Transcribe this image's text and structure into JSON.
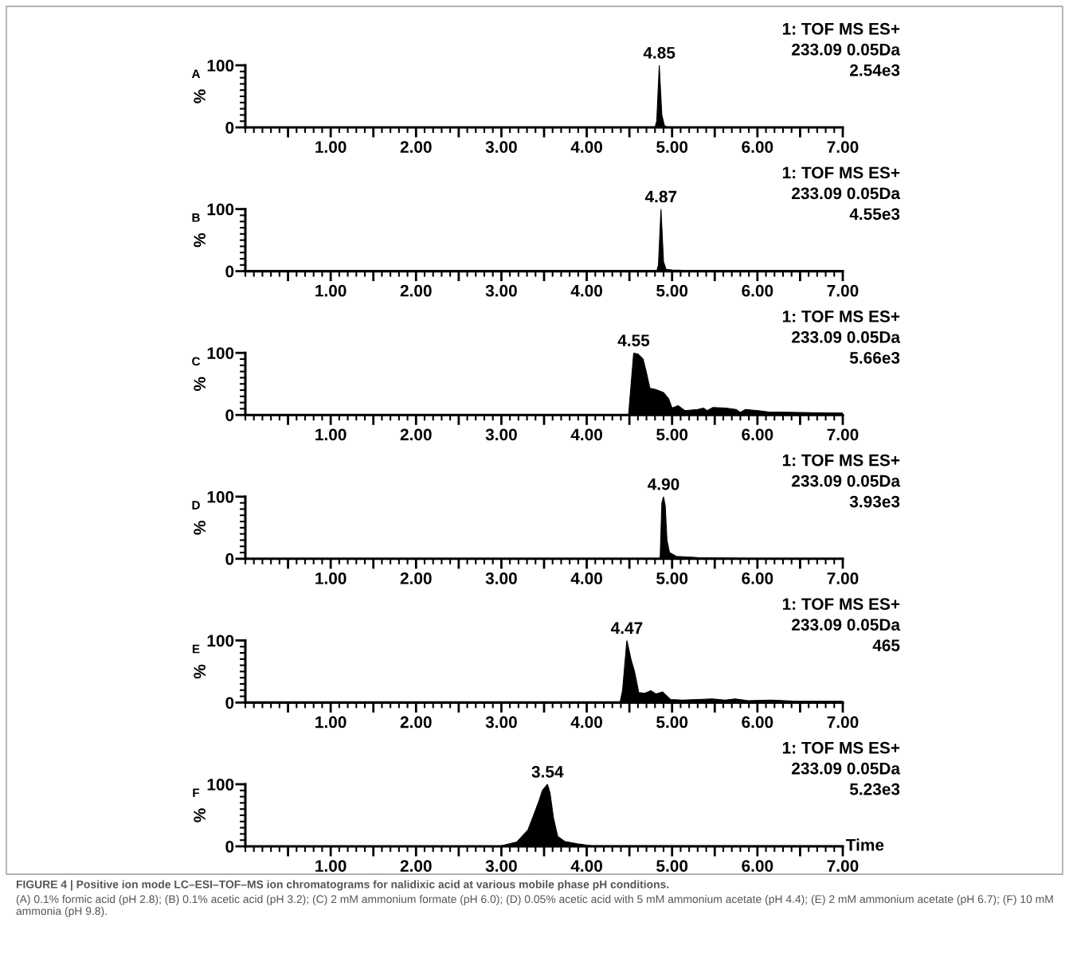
{
  "chart_data": [
    {
      "type": "area",
      "color": "#000000",
      "ylabel": "%",
      "xlim": [
        0,
        7
      ],
      "ylim": [
        0,
        100
      ],
      "yticks": [
        0,
        100
      ],
      "xticks": [
        {
          "value": 0.5,
          "label": null
        },
        {
          "value": 1,
          "label": "1.00"
        },
        {
          "value": 1.5,
          "label": null
        },
        {
          "value": 2,
          "label": "2.00"
        },
        {
          "value": 2.5,
          "label": null
        },
        {
          "value": 3,
          "label": "3.00"
        },
        {
          "value": 3.5,
          "label": null
        },
        {
          "value": 4,
          "label": "4.00"
        },
        {
          "value": 4.5,
          "label": null
        },
        {
          "value": 5,
          "label": "5.00"
        },
        {
          "value": 5.5,
          "label": null
        },
        {
          "value": 6,
          "label": "6.00"
        },
        {
          "value": 6.5,
          "label": null
        },
        {
          "value": 7,
          "label": "7.00"
        }
      ],
      "x": [
        0,
        4.8,
        4.82,
        4.85,
        4.88,
        4.91,
        4.95,
        7
      ],
      "values": [
        0,
        0,
        10,
        100,
        20,
        3,
        0,
        0
      ],
      "annotations": [
        "A",
        "1: TOF MS ES+",
        "233.09 0.05Da",
        "2.54e3",
        {
          "text": "4.85",
          "x": 4.85,
          "y": 100
        }
      ]
    },
    {
      "type": "area",
      "color": "#000000",
      "ylabel": "%",
      "xlim": [
        0,
        7
      ],
      "ylim": [
        0,
        100
      ],
      "yticks": [
        0,
        100
      ],
      "xticks": [
        {
          "value": 0.5,
          "label": null
        },
        {
          "value": 1,
          "label": "1.00"
        },
        {
          "value": 1.5,
          "label": null
        },
        {
          "value": 2,
          "label": "2.00"
        },
        {
          "value": 2.5,
          "label": null
        },
        {
          "value": 3,
          "label": "3.00"
        },
        {
          "value": 3.5,
          "label": null
        },
        {
          "value": 4,
          "label": "4.00"
        },
        {
          "value": 4.5,
          "label": null
        },
        {
          "value": 5,
          "label": "5.00"
        },
        {
          "value": 5.5,
          "label": null
        },
        {
          "value": 6,
          "label": "6.00"
        },
        {
          "value": 6.5,
          "label": null
        },
        {
          "value": 7,
          "label": "7.00"
        }
      ],
      "x": [
        0,
        4.82,
        4.84,
        4.87,
        4.9,
        4.93,
        5.0,
        5.2,
        5.3,
        7
      ],
      "values": [
        0,
        0,
        10,
        100,
        15,
        3,
        2,
        1,
        0,
        0
      ],
      "annotations": [
        "B",
        "1: TOF MS ES+",
        "233.09 0.05Da",
        "4.55e3",
        {
          "text": "4.87",
          "x": 4.87,
          "y": 100
        }
      ]
    },
    {
      "type": "area",
      "color": "#000000",
      "ylabel": "%",
      "xlim": [
        0,
        7
      ],
      "ylim": [
        0,
        100
      ],
      "yticks": [
        0,
        100
      ],
      "xticks": [
        {
          "value": 0.5,
          "label": null
        },
        {
          "value": 1,
          "label": "1.00"
        },
        {
          "value": 1.5,
          "label": null
        },
        {
          "value": 2,
          "label": "2.00"
        },
        {
          "value": 2.5,
          "label": null
        },
        {
          "value": 3,
          "label": "3.00"
        },
        {
          "value": 3.5,
          "label": null
        },
        {
          "value": 4,
          "label": "4.00"
        },
        {
          "value": 4.5,
          "label": null
        },
        {
          "value": 5,
          "label": "5.00"
        },
        {
          "value": 5.5,
          "label": null
        },
        {
          "value": 6,
          "label": "6.00"
        },
        {
          "value": 6.5,
          "label": null
        },
        {
          "value": 7,
          "label": "7.00"
        }
      ],
      "x": [
        0,
        4.49,
        4.55,
        4.6,
        4.66,
        4.7,
        4.74,
        4.81,
        4.9,
        4.96,
        5.0,
        5.07,
        5.15,
        5.3,
        5.37,
        5.41,
        5.48,
        5.63,
        5.75,
        5.8,
        5.86,
        6.01,
        6.12,
        6.49,
        7.0
      ],
      "values": [
        0,
        0,
        100,
        98,
        90,
        68,
        43,
        41,
        36,
        26,
        11,
        15,
        7,
        9,
        11,
        7,
        12,
        11,
        9,
        4,
        9,
        7,
        5,
        4,
        3
      ],
      "annotations": [
        "C",
        "1: TOF MS ES+",
        "233.09 0.05Da",
        "5.66e3",
        {
          "text": "4.55",
          "x": 4.55,
          "y": 100
        }
      ]
    },
    {
      "type": "area",
      "color": "#000000",
      "ylabel": "%",
      "xlim": [
        0,
        7
      ],
      "ylim": [
        0,
        100
      ],
      "yticks": [
        0,
        100
      ],
      "xticks": [
        {
          "value": 0.5,
          "label": null
        },
        {
          "value": 1,
          "label": "1.00"
        },
        {
          "value": 1.5,
          "label": null
        },
        {
          "value": 2,
          "label": "2.00"
        },
        {
          "value": 2.5,
          "label": null
        },
        {
          "value": 3,
          "label": "3.00"
        },
        {
          "value": 3.5,
          "label": null
        },
        {
          "value": 4,
          "label": "4.00"
        },
        {
          "value": 4.5,
          "label": null
        },
        {
          "value": 5,
          "label": "5.00"
        },
        {
          "value": 5.5,
          "label": null
        },
        {
          "value": 6,
          "label": "6.00"
        },
        {
          "value": 6.5,
          "label": null
        },
        {
          "value": 7,
          "label": "7.00"
        }
      ],
      "x": [
        0,
        4.86,
        4.88,
        4.9,
        4.92,
        4.94,
        4.97,
        5.05,
        5.3,
        5.7,
        6.0,
        7
      ],
      "values": [
        0,
        0,
        90,
        100,
        85,
        30,
        10,
        4,
        2,
        1,
        0,
        0
      ],
      "annotations": [
        "D",
        "1: TOF MS ES+",
        "233.09 0.05Da",
        "3.93e3",
        {
          "text": "4.90",
          "x": 4.9,
          "y": 100
        }
      ]
    },
    {
      "type": "area",
      "color": "#000000",
      "ylabel": "%",
      "xlim": [
        0,
        7
      ],
      "ylim": [
        0,
        100
      ],
      "yticks": [
        0,
        100
      ],
      "xticks": [
        {
          "value": 0.5,
          "label": null
        },
        {
          "value": 1,
          "label": "1.00"
        },
        {
          "value": 1.5,
          "label": null
        },
        {
          "value": 2,
          "label": "2.00"
        },
        {
          "value": 2.5,
          "label": null
        },
        {
          "value": 3,
          "label": "3.00"
        },
        {
          "value": 3.5,
          "label": null
        },
        {
          "value": 4,
          "label": "4.00"
        },
        {
          "value": 4.5,
          "label": null
        },
        {
          "value": 5,
          "label": "5.00"
        },
        {
          "value": 5.5,
          "label": null
        },
        {
          "value": 6,
          "label": "6.00"
        },
        {
          "value": 6.5,
          "label": null
        },
        {
          "value": 7,
          "label": "7.00"
        }
      ],
      "x": [
        0,
        4.39,
        4.42,
        4.47,
        4.52,
        4.56,
        4.61,
        4.68,
        4.75,
        4.81,
        4.89,
        4.98,
        5.12,
        5.31,
        5.47,
        5.62,
        5.74,
        5.89,
        6.16,
        6.47,
        7.0
      ],
      "values": [
        0,
        0,
        20,
        100,
        69,
        50,
        16,
        15,
        19,
        14,
        17,
        5,
        4,
        5,
        6,
        4,
        6,
        3,
        4,
        2,
        2
      ],
      "annotations": [
        "E",
        "1: TOF MS ES+",
        "233.09 0.05Da",
        "465",
        {
          "text": "4.47",
          "x": 4.47,
          "y": 100
        }
      ]
    },
    {
      "type": "area",
      "color": "#000000",
      "ylabel": "%",
      "xlabel": "Time",
      "xlim": [
        0,
        7
      ],
      "ylim": [
        0,
        100
      ],
      "yticks": [
        0,
        100
      ],
      "xticks": [
        {
          "value": 0.5,
          "label": null
        },
        {
          "value": 1,
          "label": "1.00"
        },
        {
          "value": 1.5,
          "label": null
        },
        {
          "value": 2,
          "label": "2.00"
        },
        {
          "value": 2.5,
          "label": null
        },
        {
          "value": 3,
          "label": "3.00"
        },
        {
          "value": 3.5,
          "label": null
        },
        {
          "value": 4,
          "label": "4.00"
        },
        {
          "value": 4.5,
          "label": null
        },
        {
          "value": 5,
          "label": "5.00"
        },
        {
          "value": 5.5,
          "label": null
        },
        {
          "value": 6,
          "label": "6.00"
        },
        {
          "value": 6.5,
          "label": null
        },
        {
          "value": 7,
          "label": "7.00"
        }
      ],
      "x": [
        0,
        2.84,
        3.0,
        3.18,
        3.31,
        3.38,
        3.44,
        3.48,
        3.54,
        3.57,
        3.61,
        3.66,
        3.74,
        3.89,
        4.06,
        4.84,
        7.0
      ],
      "values": [
        0,
        0,
        1,
        7,
        26,
        51,
        73,
        90,
        100,
        86,
        46,
        16,
        8,
        4,
        1,
        1,
        1
      ],
      "annotations": [
        "F",
        "1: TOF MS ES+",
        "233.09 0.05Da",
        "5.23e3",
        {
          "text": "3.54",
          "x": 3.54,
          "y": 100
        },
        "FIGURE 4 | Positive ion mode LC–ESI–TOF–MS ion chromatograms for nalidixic acid at various mobile phase pH conditions.",
        "(A) 0.1% formic acid (pH 2.8); (B) 0.1% acetic acid (pH 3.2); (C) 2 mM ammonium formate (pH 6.0); (D) 0.05% acetic acid with 5 mM ammonium acetate (pH 4.4); (E) 2 mM ammonium acetate (pH 6.7); (F) 10 mM ammonia (pH 9.8)."
      ]
    }
  ]
}
